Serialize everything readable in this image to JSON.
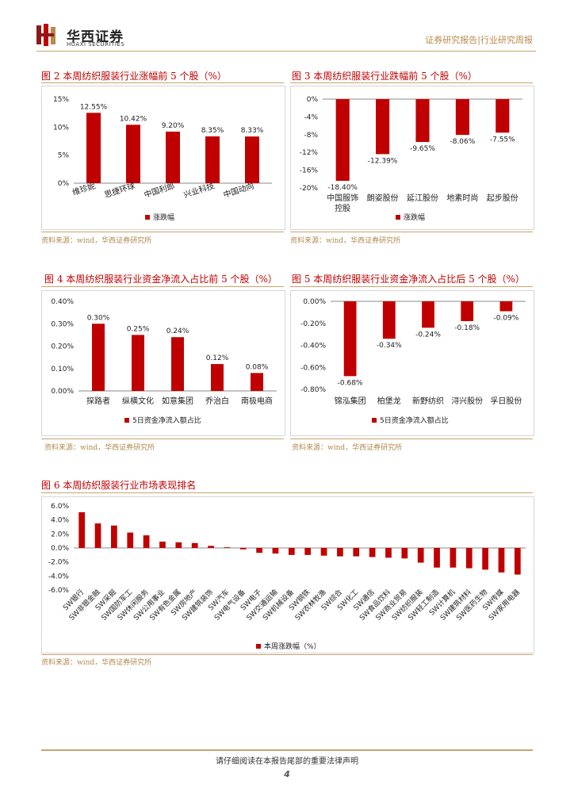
{
  "header": {
    "brand_cn": "华西证券",
    "brand_en": "HUAXI SECURITIES",
    "report_type": "证券研究报告|行业研究周报"
  },
  "colors": {
    "bar": "#c00000",
    "accent": "#c8a46c"
  },
  "figures": {
    "fig2": {
      "title": "图 2 本周纺织服装行业涨幅前 5 个股（%）",
      "source": "资料来源：wind，华西证券研究所"
    },
    "fig3": {
      "title": "图 3 本周纺织服装行业跌幅前 5 个股（%）",
      "source": "资料来源：wind，华西证券研究所"
    },
    "fig4": {
      "title": "图 4 本周纺织服装行业资金净流入占比前 5 个股（%）",
      "source": "资料来源：wind，华西证券研究所"
    },
    "fig5": {
      "title": "图 5 本周纺织服装行业资金净流入占比后 5 个股（%）",
      "source": "资料来源：wind，华西证券研究所"
    },
    "fig6": {
      "title": "图 6 本周纺织服装行业市场表现排名",
      "source": "资料来源：wind，华西证券研究所"
    }
  },
  "chart_data": [
    {
      "id": "fig2",
      "type": "bar",
      "categories": [
        "维珍妮",
        "思捷环球",
        "中国利郎",
        "兴业科技",
        "中国动向"
      ],
      "values": [
        12.55,
        10.42,
        9.2,
        8.35,
        8.33
      ],
      "labels": [
        "12.55%",
        "10.42%",
        "9.20%",
        "8.35%",
        "8.33%"
      ],
      "yticks": [
        "0%",
        "5%",
        "10%",
        "15%"
      ],
      "ylim": [
        0,
        15
      ],
      "legend": "涨跌幅"
    },
    {
      "id": "fig3",
      "type": "bar",
      "categories": [
        "中国服饰控股",
        "朗姿股份",
        "延江股份",
        "地素时尚",
        "起步股份"
      ],
      "values": [
        -18.4,
        -12.39,
        -9.65,
        -8.06,
        -7.55
      ],
      "labels": [
        "-18.40%",
        "-12.39%",
        "-9.65%",
        "-8.06%",
        "-7.55%"
      ],
      "yticks": [
        "0%",
        "-4%",
        "-8%",
        "-12%",
        "-16%",
        "-20%"
      ],
      "ylim": [
        -20,
        0
      ],
      "legend": "涨跌幅"
    },
    {
      "id": "fig4",
      "type": "bar",
      "categories": [
        "探路者",
        "纵横文化",
        "如意集团",
        "乔治白",
        "南极电商"
      ],
      "values": [
        0.3,
        0.25,
        0.24,
        0.12,
        0.08
      ],
      "labels": [
        "0.30%",
        "0.25%",
        "0.24%",
        "0.12%",
        "0.08%"
      ],
      "yticks": [
        "0.00%",
        "0.10%",
        "0.20%",
        "0.30%",
        "0.40%"
      ],
      "ylim": [
        0,
        0.4
      ],
      "legend": "5日资金净流入额占比"
    },
    {
      "id": "fig5",
      "type": "bar",
      "categories": [
        "锦泓集团",
        "柏堡龙",
        "新野纺织",
        "浔兴股份",
        "孚日股份"
      ],
      "values": [
        -0.68,
        -0.34,
        -0.24,
        -0.18,
        -0.09
      ],
      "labels": [
        "-0.68%",
        "-0.34%",
        "-0.24%",
        "-0.18%",
        "-0.09%"
      ],
      "yticks": [
        "0.00%",
        "-0.20%",
        "-0.40%",
        "-0.60%",
        "-0.80%"
      ],
      "ylim": [
        -0.8,
        0
      ],
      "legend": "5日资金净流入额占比"
    },
    {
      "id": "fig6",
      "type": "bar",
      "categories": [
        "SW银行",
        "SW非银金融",
        "SW采掘",
        "SW国防军工",
        "SW休闲服务",
        "SW公用事业",
        "SW有色金属",
        "SW房地产",
        "SW建筑装饰",
        "SW汽车",
        "SW电气设备",
        "SW电子",
        "SW交通运输",
        "SW机械设备",
        "SW钢铁",
        "SW农林牧渔",
        "SW综合",
        "SW化工",
        "SW通信",
        "SW食品饮料",
        "SW商业贸易",
        "SW纺织服装",
        "SW轻工制造",
        "SW计算机",
        "SW建筑材料",
        "SW医药生物",
        "SW传媒",
        "SW家用电器"
      ],
      "values": [
        5.1,
        3.5,
        3.2,
        2.2,
        1.8,
        0.9,
        0.8,
        0.7,
        0.3,
        0.1,
        -0.2,
        -0.7,
        -0.8,
        -1.0,
        -1.0,
        -1.1,
        -1.2,
        -1.2,
        -1.3,
        -1.4,
        -1.5,
        -2.1,
        -2.8,
        -2.8,
        -2.9,
        -3.1,
        -3.5,
        -3.8
      ],
      "yticks": [
        "6.0%",
        "4.0%",
        "2.0%",
        "0.0%",
        "-2.0%",
        "-4.0%",
        "-6.0%"
      ],
      "ylim": [
        -6,
        6
      ],
      "legend": "本周涨跌幅（%）"
    }
  ],
  "footer": {
    "notice": "请仔细阅读在本报告尾部的重要法律声明",
    "page": "4"
  }
}
